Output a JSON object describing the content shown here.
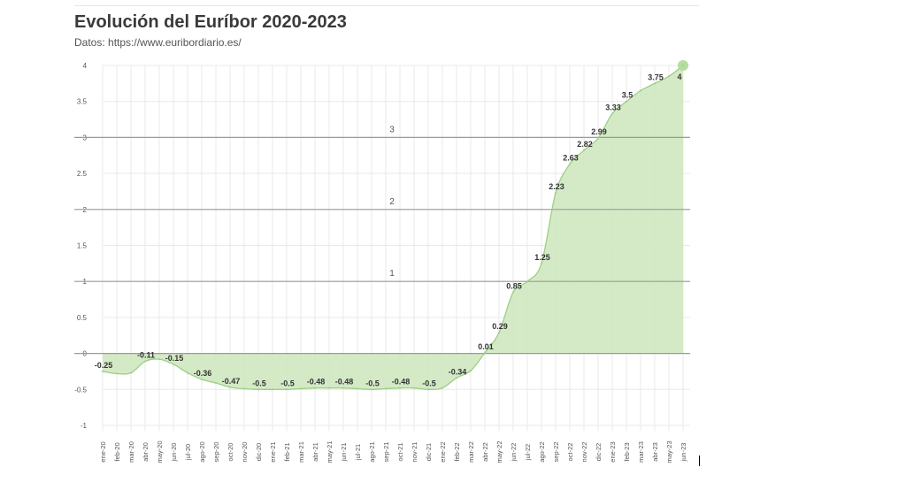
{
  "title": "Evolución del Euríbor 2020-2023",
  "subtitle": "Datos: https://www.euribordiario.es/",
  "colors": {
    "fill": "#cfe8c0",
    "line": "#9ccf84",
    "endpoint": "#b5dd9f",
    "grid": "#e9e9e9",
    "refline": "#9a9a9a"
  },
  "chart_data": {
    "type": "area",
    "x": [
      "ene-20",
      "feb-20",
      "mar-20",
      "abr-20",
      "may-20",
      "jun-20",
      "jul-20",
      "ago-20",
      "sep-20",
      "oct-20",
      "nov-20",
      "dic-20",
      "ene-21",
      "feb-21",
      "mar-21",
      "abr-21",
      "may-21",
      "jun-21",
      "jul-21",
      "ago-21",
      "sep-21",
      "oct-21",
      "nov-21",
      "dic-21",
      "ene-22",
      "feb-22",
      "mar-22",
      "abr-22",
      "may-22",
      "jun-22",
      "jul-22",
      "ago-22",
      "sep-22",
      "oct-22",
      "nov-22",
      "dic-22",
      "ene-23",
      "feb-23",
      "mar-23",
      "abr-23",
      "may-23",
      "jun-23"
    ],
    "values": [
      -0.25,
      -0.28,
      -0.27,
      -0.11,
      -0.08,
      -0.15,
      -0.27,
      -0.36,
      -0.41,
      -0.47,
      -0.49,
      -0.5,
      -0.5,
      -0.5,
      -0.49,
      -0.48,
      -0.48,
      -0.48,
      -0.49,
      -0.5,
      -0.49,
      -0.48,
      -0.48,
      -0.5,
      -0.48,
      -0.34,
      -0.24,
      0.01,
      0.29,
      0.85,
      1.0,
      1.25,
      2.23,
      2.63,
      2.82,
      2.99,
      3.33,
      3.5,
      3.65,
      3.75,
      3.85,
      4.0
    ],
    "data_labels": [
      {
        "x": "ene-20",
        "y": -0.25,
        "text": "-0.25"
      },
      {
        "x": "abr-20",
        "y": -0.11,
        "text": "-0.11"
      },
      {
        "x": "jun-20",
        "y": -0.15,
        "text": "-0.15"
      },
      {
        "x": "ago-20",
        "y": -0.36,
        "text": "-0.36"
      },
      {
        "x": "oct-20",
        "y": -0.47,
        "text": "-0.47"
      },
      {
        "x": "dic-20",
        "y": -0.5,
        "text": "-0.5"
      },
      {
        "x": "feb-21",
        "y": -0.5,
        "text": "-0.5"
      },
      {
        "x": "abr-21",
        "y": -0.48,
        "text": "-0.48"
      },
      {
        "x": "jun-21",
        "y": -0.48,
        "text": "-0.48"
      },
      {
        "x": "ago-21",
        "y": -0.5,
        "text": "-0.5"
      },
      {
        "x": "oct-21",
        "y": -0.48,
        "text": "-0.48"
      },
      {
        "x": "dic-21",
        "y": -0.5,
        "text": "-0.5"
      },
      {
        "x": "feb-22",
        "y": -0.34,
        "text": "-0.34"
      },
      {
        "x": "abr-22",
        "y": 0.01,
        "text": "0.01"
      },
      {
        "x": "may-22",
        "y": 0.29,
        "text": "0.29"
      },
      {
        "x": "jun-22",
        "y": 0.85,
        "text": "0.85"
      },
      {
        "x": "ago-22",
        "y": 1.25,
        "text": "1.25"
      },
      {
        "x": "sep-22",
        "y": 2.23,
        "text": "2.23"
      },
      {
        "x": "oct-22",
        "y": 2.63,
        "text": "2.63"
      },
      {
        "x": "nov-22",
        "y": 2.82,
        "text": "2.82"
      },
      {
        "x": "dic-22",
        "y": 2.99,
        "text": "2.99"
      },
      {
        "x": "ene-23",
        "y": 3.33,
        "text": "3.33"
      },
      {
        "x": "feb-23",
        "y": 3.5,
        "text": "3.5"
      },
      {
        "x": "abr-23",
        "y": 3.75,
        "text": "3.75"
      },
      {
        "x": "jun-23",
        "y": 4,
        "text": "4"
      }
    ],
    "y_ticks": [
      "-1",
      "-0.5",
      "0",
      "0.5",
      "1",
      "1.5",
      "2",
      "2.5",
      "3",
      "3.5",
      "4"
    ],
    "ylim": [
      -1,
      4
    ],
    "reference_lines": [
      {
        "y": 1,
        "label": "1"
      },
      {
        "y": 2,
        "label": "2"
      },
      {
        "y": 3,
        "label": "3"
      }
    ],
    "zero_line": true,
    "grid": true,
    "legend": "none"
  }
}
